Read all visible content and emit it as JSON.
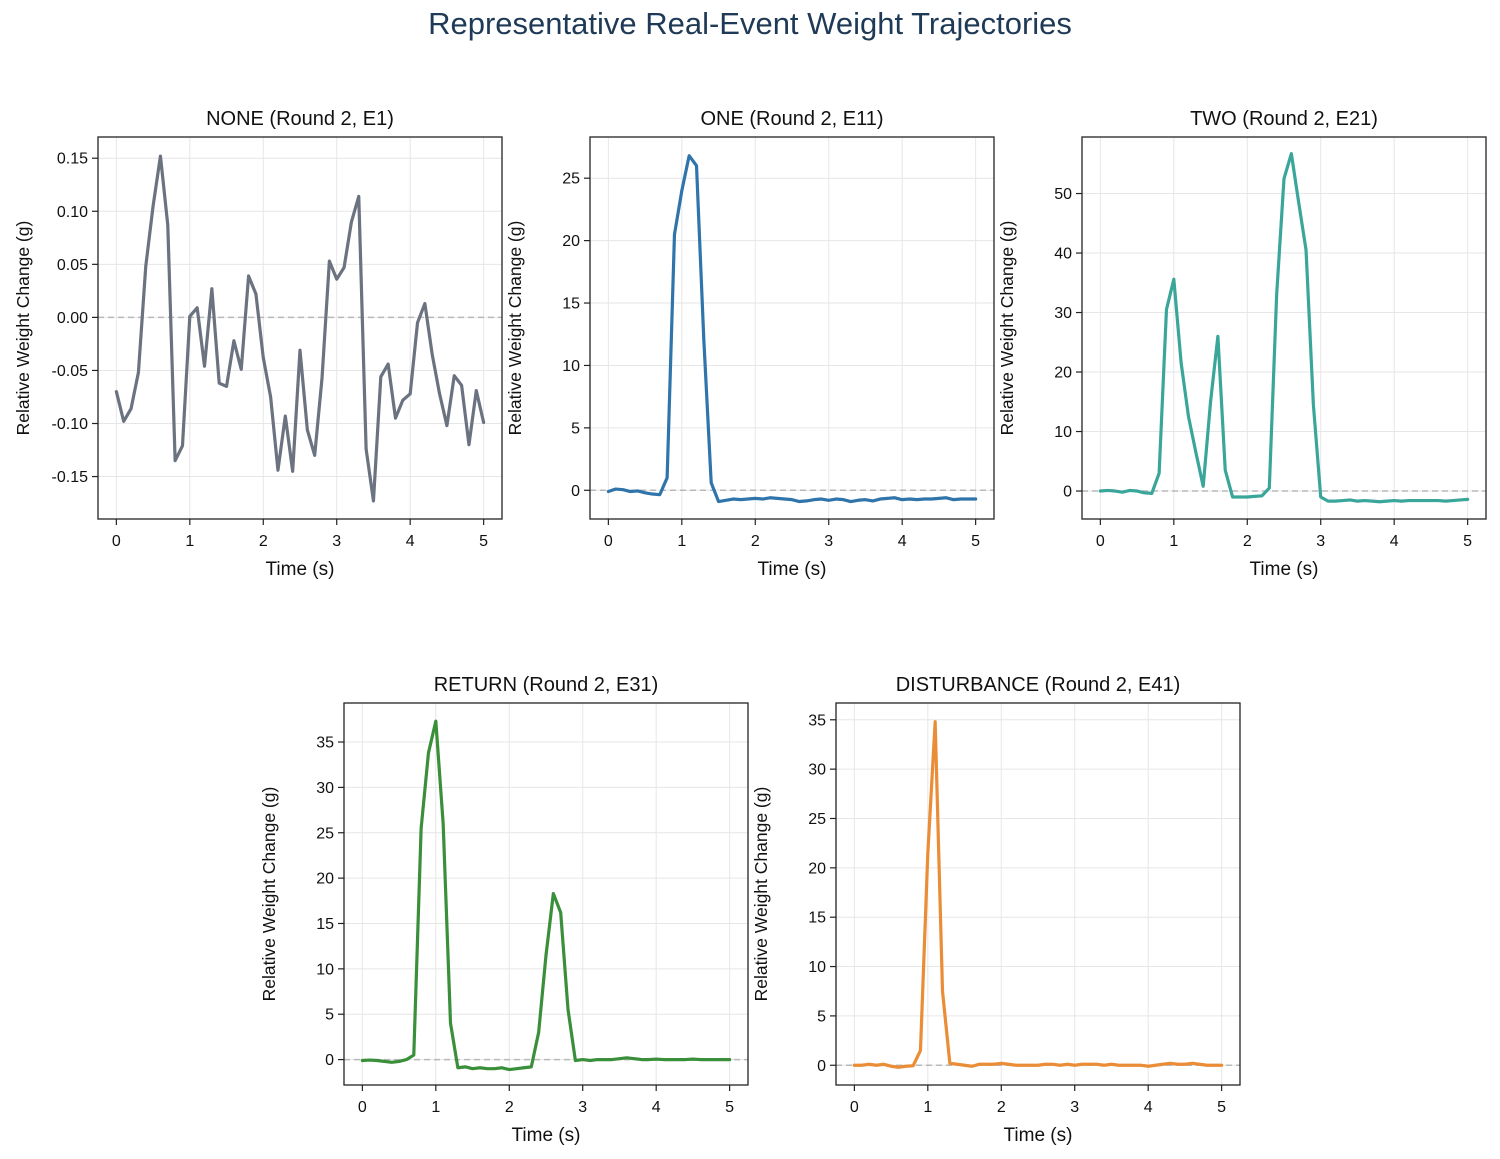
{
  "figure": {
    "title": "Representative Real-Event Weight Trajectories"
  },
  "chart_data": [
    {
      "type": "line",
      "title": "NONE (Round 2, E1)",
      "xlabel": "Time (s)",
      "ylabel": "Relative Weight Change (g)",
      "xlim": [
        -0.25,
        5.25
      ],
      "ylim": [
        -0.19,
        0.17
      ],
      "xticks": [
        0,
        1,
        2,
        3,
        4,
        5
      ],
      "xtick_labels": [
        "0",
        "1",
        "2",
        "3",
        "4",
        "5"
      ],
      "yticks": [
        -0.15,
        -0.1,
        -0.05,
        0.0,
        0.05,
        0.1,
        0.15
      ],
      "ytick_labels": [
        "-0.15",
        "-0.10",
        "-0.05",
        "0.00",
        "0.05",
        "0.10",
        "0.15"
      ],
      "grid": true,
      "zero_line": true,
      "color": "#6b7280",
      "series": [
        {
          "x": [
            0.0,
            0.1,
            0.2,
            0.3,
            0.4,
            0.5,
            0.6,
            0.7,
            0.8,
            0.9,
            1.0,
            1.1,
            1.2,
            1.3,
            1.4,
            1.5,
            1.6,
            1.7,
            1.8,
            1.9,
            2.0,
            2.1,
            2.2,
            2.3,
            2.4,
            2.5,
            2.6,
            2.7,
            2.8,
            2.9,
            3.0,
            3.1,
            3.2,
            3.3,
            3.4,
            3.5,
            3.6,
            3.7,
            3.8,
            3.9,
            4.0,
            4.1,
            4.2,
            4.3,
            4.4,
            4.5,
            4.6,
            4.7,
            4.8,
            4.9,
            5.0
          ],
          "y": [
            -0.07,
            -0.098,
            -0.086,
            -0.052,
            0.048,
            0.105,
            0.152,
            0.087,
            -0.135,
            -0.121,
            0.001,
            0.009,
            -0.046,
            0.027,
            -0.062,
            -0.065,
            -0.022,
            -0.049,
            0.039,
            0.022,
            -0.038,
            -0.075,
            -0.144,
            -0.093,
            -0.145,
            -0.031,
            -0.106,
            -0.13,
            -0.057,
            0.053,
            0.036,
            0.047,
            0.09,
            0.114,
            -0.124,
            -0.173,
            -0.056,
            -0.044,
            -0.095,
            -0.078,
            -0.072,
            -0.005,
            0.013,
            -0.035,
            -0.072,
            -0.102,
            -0.055,
            -0.064,
            -0.12,
            -0.069,
            -0.099
          ]
        }
      ]
    },
    {
      "type": "line",
      "title": "ONE (Round 2, E11)",
      "xlabel": "Time (s)",
      "ylabel": "Relative Weight Change (g)",
      "xlim": [
        -0.25,
        5.25
      ],
      "ylim": [
        -2.3,
        28.3
      ],
      "xticks": [
        0,
        1,
        2,
        3,
        4,
        5
      ],
      "xtick_labels": [
        "0",
        "1",
        "2",
        "3",
        "4",
        "5"
      ],
      "yticks": [
        0,
        5,
        10,
        15,
        20,
        25
      ],
      "ytick_labels": [
        "0",
        "5",
        "10",
        "15",
        "20",
        "25"
      ],
      "grid": true,
      "zero_line": true,
      "color": "#2f75ab",
      "series": [
        {
          "x": [
            0.0,
            0.1,
            0.2,
            0.3,
            0.4,
            0.5,
            0.6,
            0.7,
            0.8,
            0.9,
            1.0,
            1.1,
            1.2,
            1.3,
            1.4,
            1.5,
            1.6,
            1.7,
            1.8,
            1.9,
            2.0,
            2.1,
            2.2,
            2.3,
            2.4,
            2.5,
            2.6,
            2.7,
            2.8,
            2.9,
            3.0,
            3.1,
            3.2,
            3.3,
            3.4,
            3.5,
            3.6,
            3.7,
            3.8,
            3.9,
            4.0,
            4.1,
            4.2,
            4.3,
            4.4,
            4.5,
            4.6,
            4.7,
            4.8,
            4.9,
            5.0
          ],
          "y": [
            -0.1,
            0.1,
            0.05,
            -0.1,
            -0.05,
            -0.2,
            -0.3,
            -0.35,
            1.0,
            20.5,
            24.0,
            26.8,
            26.0,
            12.0,
            0.6,
            -0.9,
            -0.8,
            -0.7,
            -0.75,
            -0.7,
            -0.65,
            -0.7,
            -0.6,
            -0.65,
            -0.7,
            -0.75,
            -0.9,
            -0.85,
            -0.75,
            -0.7,
            -0.8,
            -0.7,
            -0.75,
            -0.9,
            -0.8,
            -0.75,
            -0.85,
            -0.7,
            -0.65,
            -0.6,
            -0.75,
            -0.7,
            -0.75,
            -0.7,
            -0.7,
            -0.65,
            -0.6,
            -0.75,
            -0.7,
            -0.7,
            -0.7
          ]
        }
      ]
    },
    {
      "type": "line",
      "title": "TWO (Round 2, E21)",
      "xlabel": "Time (s)",
      "ylabel": "Relative Weight Change (g)",
      "xlim": [
        -0.25,
        5.25
      ],
      "ylim": [
        -4.7,
        59.5
      ],
      "xticks": [
        0,
        1,
        2,
        3,
        4,
        5
      ],
      "xtick_labels": [
        "0",
        "1",
        "2",
        "3",
        "4",
        "5"
      ],
      "yticks": [
        0,
        10,
        20,
        30,
        40,
        50
      ],
      "ytick_labels": [
        "0",
        "10",
        "20",
        "30",
        "40",
        "50"
      ],
      "grid": true,
      "zero_line": true,
      "color": "#3aa69a",
      "series": [
        {
          "x": [
            0.0,
            0.1,
            0.2,
            0.3,
            0.4,
            0.5,
            0.6,
            0.7,
            0.8,
            0.9,
            1.0,
            1.1,
            1.2,
            1.3,
            1.4,
            1.5,
            1.6,
            1.7,
            1.8,
            1.9,
            2.0,
            2.1,
            2.2,
            2.3,
            2.4,
            2.5,
            2.6,
            2.7,
            2.8,
            2.9,
            3.0,
            3.1,
            3.2,
            3.3,
            3.4,
            3.5,
            3.6,
            3.7,
            3.8,
            3.9,
            4.0,
            4.1,
            4.2,
            4.3,
            4.4,
            4.5,
            4.6,
            4.7,
            4.8,
            4.9,
            5.0
          ],
          "y": [
            0.0,
            0.1,
            0.0,
            -0.2,
            0.1,
            0.0,
            -0.3,
            -0.4,
            3.0,
            30.5,
            35.6,
            21.5,
            12.5,
            6.5,
            0.8,
            15.0,
            26.0,
            3.5,
            -1.0,
            -1.0,
            -1.0,
            -0.9,
            -0.8,
            0.5,
            33.0,
            52.5,
            56.7,
            48.5,
            40.5,
            14.5,
            -1.0,
            -1.7,
            -1.7,
            -1.6,
            -1.5,
            -1.7,
            -1.6,
            -1.7,
            -1.8,
            -1.7,
            -1.6,
            -1.7,
            -1.6,
            -1.6,
            -1.6,
            -1.6,
            -1.6,
            -1.7,
            -1.6,
            -1.5,
            -1.4
          ]
        }
      ]
    },
    {
      "type": "line",
      "title": "RETURN (Round 2, E31)",
      "xlabel": "Time (s)",
      "ylabel": "Relative Weight Change (g)",
      "xlim": [
        -0.25,
        5.25
      ],
      "ylim": [
        -2.8,
        39.3
      ],
      "xticks": [
        0,
        1,
        2,
        3,
        4,
        5
      ],
      "xtick_labels": [
        "0",
        "1",
        "2",
        "3",
        "4",
        "5"
      ],
      "yticks": [
        0,
        5,
        10,
        15,
        20,
        25,
        30,
        35
      ],
      "ytick_labels": [
        "0",
        "5",
        "10",
        "15",
        "20",
        "25",
        "30",
        "35"
      ],
      "grid": true,
      "zero_line": true,
      "color": "#3a8f3a",
      "series": [
        {
          "x": [
            0.0,
            0.1,
            0.2,
            0.3,
            0.4,
            0.5,
            0.6,
            0.7,
            0.8,
            0.9,
            1.0,
            1.1,
            1.2,
            1.3,
            1.4,
            1.5,
            1.6,
            1.7,
            1.8,
            1.9,
            2.0,
            2.1,
            2.2,
            2.3,
            2.4,
            2.5,
            2.6,
            2.7,
            2.8,
            2.9,
            3.0,
            3.1,
            3.2,
            3.3,
            3.4,
            3.5,
            3.6,
            3.7,
            3.8,
            3.9,
            4.0,
            4.1,
            4.2,
            4.3,
            4.4,
            4.5,
            4.6,
            4.7,
            4.8,
            4.9,
            5.0
          ],
          "y": [
            -0.1,
            -0.05,
            -0.1,
            -0.2,
            -0.3,
            -0.2,
            0.0,
            0.5,
            25.5,
            33.8,
            37.3,
            26.0,
            4.0,
            -0.9,
            -0.8,
            -1.0,
            -0.9,
            -1.0,
            -1.0,
            -0.9,
            -1.1,
            -1.0,
            -0.9,
            -0.8,
            3.0,
            11.5,
            18.3,
            16.2,
            5.5,
            -0.1,
            0.0,
            -0.1,
            0.0,
            0.0,
            0.0,
            0.1,
            0.2,
            0.1,
            0.0,
            0.0,
            0.05,
            0.0,
            0.0,
            0.0,
            0.0,
            0.05,
            0.0,
            0.0,
            0.0,
            0.0,
            0.0
          ]
        }
      ]
    },
    {
      "type": "line",
      "title": "DISTURBANCE (Round 2, E41)",
      "xlabel": "Time (s)",
      "ylabel": "Relative Weight Change (g)",
      "xlim": [
        -0.25,
        5.25
      ],
      "ylim": [
        -2.0,
        36.7
      ],
      "xticks": [
        0,
        1,
        2,
        3,
        4,
        5
      ],
      "xtick_labels": [
        "0",
        "1",
        "2",
        "3",
        "4",
        "5"
      ],
      "yticks": [
        0,
        5,
        10,
        15,
        20,
        25,
        30,
        35
      ],
      "ytick_labels": [
        "0",
        "5",
        "10",
        "15",
        "20",
        "25",
        "30",
        "35"
      ],
      "grid": true,
      "zero_line": true,
      "color": "#ea8d36",
      "series": [
        {
          "x": [
            0.0,
            0.1,
            0.2,
            0.3,
            0.4,
            0.5,
            0.6,
            0.7,
            0.8,
            0.9,
            1.0,
            1.1,
            1.2,
            1.3,
            1.4,
            1.5,
            1.6,
            1.7,
            1.8,
            1.9,
            2.0,
            2.1,
            2.2,
            2.3,
            2.4,
            2.5,
            2.6,
            2.7,
            2.8,
            2.9,
            3.0,
            3.1,
            3.2,
            3.3,
            3.4,
            3.5,
            3.6,
            3.7,
            3.8,
            3.9,
            4.0,
            4.1,
            4.2,
            4.3,
            4.4,
            4.5,
            4.6,
            4.7,
            4.8,
            4.9,
            5.0
          ],
          "y": [
            0.0,
            0.0,
            0.1,
            0.0,
            0.1,
            -0.1,
            -0.2,
            -0.1,
            -0.05,
            1.5,
            21.5,
            34.8,
            7.5,
            0.2,
            0.1,
            0.0,
            -0.1,
            0.1,
            0.1,
            0.1,
            0.2,
            0.1,
            0.0,
            0.0,
            0.0,
            0.0,
            0.1,
            0.1,
            0.0,
            0.1,
            0.0,
            0.1,
            0.1,
            0.1,
            0.0,
            0.1,
            0.0,
            0.0,
            0.0,
            0.0,
            -0.1,
            0.0,
            0.1,
            0.2,
            0.1,
            0.1,
            0.2,
            0.1,
            0.0,
            0.0,
            0.0
          ]
        }
      ]
    }
  ]
}
